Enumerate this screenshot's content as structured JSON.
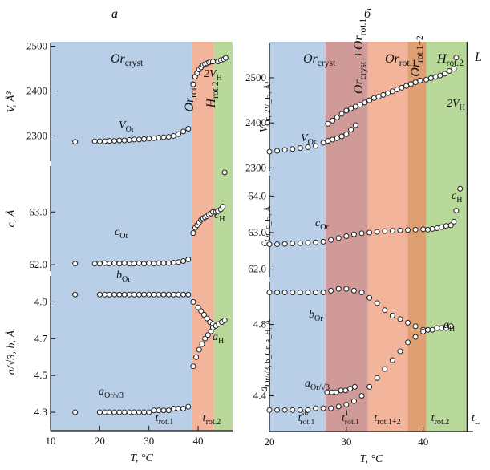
{
  "chart_data": [
    {
      "panel": "a",
      "panel_label": "а",
      "type": "scatter",
      "xlabel": "T, °C",
      "xlim": [
        10,
        47
      ],
      "x_ticks": [
        "10",
        "20",
        "30",
        "40"
      ],
      "phase_regions": [
        {
          "label": "Or_cryst",
          "from": 10,
          "to": 38.8,
          "color": "#b9cfe8"
        },
        {
          "label": "Or_rot.1",
          "from": 38.8,
          "to": 43.2,
          "color": "#f2b49a"
        },
        {
          "label": "H_rot.2",
          "from": 43.2,
          "to": 47,
          "color": "#b9d99a"
        }
      ],
      "transitions": [
        {
          "label": "t_rot.1",
          "x": 38.8
        },
        {
          "label": "t_rot.2",
          "x": 43.2
        }
      ],
      "subplots": [
        {
          "ylabel": "V, Å³",
          "ylim": [
            2240,
            2510
          ],
          "y_ticks": [
            "2300",
            "2400",
            "2500"
          ],
          "series": [
            {
              "name": "V_Or",
              "x": [
                15,
                19,
                20,
                21,
                22,
                23,
                24,
                25,
                26,
                27,
                28,
                29,
                30,
                31,
                32,
                33,
                34,
                35,
                36,
                37,
                38,
                39,
                39.4,
                39.8,
                40.2,
                40.6,
                41,
                41.4,
                41.8,
                42.2,
                42.6,
                43
              ],
              "y": [
                2287,
                2288,
                2288,
                2288,
                2289,
                2289,
                2290,
                2290,
                2291,
                2292,
                2292,
                2293,
                2294,
                2295,
                2296,
                2297,
                2298,
                2300,
                2304,
                2310,
                2316,
                2415,
                2432,
                2440,
                2448,
                2453,
                2458,
                2460,
                2462,
                2464,
                2466,
                2466
              ]
            },
            {
              "name": "2V_H",
              "x": [
                44,
                44.6,
                45.2,
                45.6
              ],
              "y": [
                2466,
                2469,
                2471,
                2474
              ]
            }
          ],
          "annotations": [
            {
              "text": "V_Or"
            },
            {
              "text": "2V_H"
            },
            {
              "text": "Or_cryst"
            },
            {
              "text": "Or_rot.1"
            },
            {
              "text": "H_rot.2"
            }
          ]
        },
        {
          "ylabel": "c, Å",
          "ylim": [
            61.85,
            63.9
          ],
          "y_ticks": [
            "62.0",
            "63.0"
          ],
          "series": [
            {
              "name": "c_Or",
              "x": [
                15,
                19,
                20,
                21,
                22,
                23,
                24,
                25,
                26,
                27,
                28,
                29,
                30,
                31,
                32,
                33,
                34,
                35,
                36,
                37,
                38,
                39,
                39.4,
                39.8,
                40.2,
                40.6,
                41,
                41.4,
                41.8,
                42.2,
                42.6,
                43
              ],
              "y": [
                62.02,
                62.02,
                62.02,
                62.03,
                62.02,
                62.03,
                62.02,
                62.03,
                62.02,
                62.02,
                62.03,
                62.02,
                62.03,
                62.02,
                62.03,
                62.03,
                62.03,
                62.04,
                62.05,
                62.07,
                62.1,
                62.6,
                62.7,
                62.75,
                62.8,
                62.85,
                62.88,
                62.9,
                62.92,
                62.95,
                62.97,
                63.0
              ]
            },
            {
              "name": "c_H",
              "x": [
                43.6,
                44,
                44.6,
                45,
                45.4
              ],
              "y": [
                63.0,
                63.02,
                63.05,
                63.1,
                63.75
              ]
            }
          ],
          "annotations": [
            {
              "text": "c_Or"
            },
            {
              "text": "c_H"
            }
          ]
        },
        {
          "ylabel": "a/√3, b, Å",
          "ylim": [
            4.2,
            5.05
          ],
          "y_ticks": [
            "4.3",
            "4.5",
            "4.7",
            "4.9"
          ],
          "series": [
            {
              "name": "b_Or",
              "x": [
                15,
                20,
                21,
                22,
                23,
                24,
                25,
                26,
                27,
                28,
                29,
                30,
                31,
                32,
                33,
                34,
                35,
                36,
                37,
                38,
                39,
                40,
                40.6,
                41.2,
                41.8,
                42.4,
                43
              ],
              "y": [
                4.94,
                4.94,
                4.94,
                4.94,
                4.94,
                4.94,
                4.94,
                4.94,
                4.94,
                4.94,
                4.94,
                4.94,
                4.94,
                4.94,
                4.94,
                4.94,
                4.94,
                4.94,
                4.94,
                4.94,
                4.9,
                4.87,
                4.85,
                4.83,
                4.81,
                4.79,
                4.78
              ]
            },
            {
              "name": "a_Or/√3",
              "x": [
                15,
                20,
                21,
                22,
                23,
                24,
                25,
                26,
                27,
                28,
                29,
                30,
                31,
                32,
                33,
                34,
                35,
                36,
                37,
                38,
                39,
                39.6,
                40.2,
                40.8,
                41.4,
                42,
                42.6,
                43
              ],
              "y": [
                4.3,
                4.3,
                4.3,
                4.3,
                4.3,
                4.3,
                4.3,
                4.3,
                4.3,
                4.3,
                4.3,
                4.3,
                4.31,
                4.31,
                4.31,
                4.31,
                4.32,
                4.32,
                4.32,
                4.33,
                4.55,
                4.6,
                4.64,
                4.67,
                4.7,
                4.72,
                4.74,
                4.76
              ]
            },
            {
              "name": "a_H",
              "x": [
                43.6,
                44.2,
                44.8,
                45.4
              ],
              "y": [
                4.77,
                4.78,
                4.79,
                4.8
              ]
            }
          ],
          "annotations": [
            {
              "text": "b_Or"
            },
            {
              "text": "a_Or/√3"
            },
            {
              "text": "a_H"
            }
          ]
        }
      ]
    },
    {
      "panel": "b",
      "panel_label": "б",
      "type": "scatter",
      "xlabel": "T, °C",
      "xlim": [
        20,
        46.5
      ],
      "x_ticks": [
        "20",
        "30",
        "40"
      ],
      "phase_regions": [
        {
          "label": "Or_cryst",
          "from": 20,
          "to": 27.3,
          "color": "#b9cfe8"
        },
        {
          "label": "Or_cryst + Or_rot.1",
          "from": 27.3,
          "to": 32.8,
          "color": "#cf9a98"
        },
        {
          "label": "Or_rot.1",
          "from": 32.8,
          "to": 38,
          "color": "#f2b49a"
        },
        {
          "label": "Or_rot.1+2",
          "from": 38,
          "to": 40.4,
          "color": "#dea072"
        },
        {
          "label": "H_rot.2",
          "from": 40.4,
          "to": 45.7,
          "color": "#b9d99a"
        },
        {
          "label": "L",
          "from": 45.7,
          "to": 46.5,
          "color": "#ffffff"
        }
      ],
      "transitions": [
        {
          "label": "t_rot.1^sh",
          "x": 26.1
        },
        {
          "label": "t_rot.1^1",
          "x": 30.4
        },
        {
          "label": "t_rot.1+2",
          "x": 35.2
        },
        {
          "label": "t_rot.2",
          "x": 41.3
        },
        {
          "label": "t_L",
          "x": 45.7
        }
      ],
      "subplots": [
        {
          "ylabel": "V_Or, 2V_H, Å³",
          "ylim": [
            2290,
            2580
          ],
          "y_ticks": [
            "2300",
            "2400",
            "2500"
          ],
          "series": [
            {
              "name": "V_Or",
              "x": [
                20,
                21,
                22,
                23,
                24,
                25,
                26,
                27,
                27.6,
                28.2,
                28.8,
                29.4,
                30,
                30.6,
                31.2
              ],
              "y": [
                2336,
                2338,
                2340,
                2342,
                2344,
                2346,
                2349,
                2356,
                2360,
                2363,
                2366,
                2370,
                2375,
                2385,
                2395
              ]
            },
            {
              "name": "V_Or (rot.1)",
              "x": [
                27.6,
                28.2,
                28.8,
                29.4,
                30,
                30.6,
                31.2,
                31.8,
                32.4,
                33,
                33.6,
                34.2,
                34.8,
                35.4,
                36,
                36.6,
                37.2,
                37.8,
                38.4,
                39,
                39.6
              ],
              "y": [
                2398,
                2405,
                2412,
                2420,
                2427,
                2432,
                2436,
                2440,
                2445,
                2450,
                2455,
                2458,
                2462,
                2466,
                2470,
                2474,
                2478,
                2482,
                2486,
                2490,
                2494
              ]
            },
            {
              "name": "2V_H",
              "x": [
                40.4,
                41,
                41.6,
                42.2,
                42.8,
                43.4,
                44,
                44.3
              ],
              "y": [
                2496,
                2499,
                2502,
                2505,
                2509,
                2515,
                2520,
                2545
              ]
            }
          ],
          "annotations": [
            {
              "text": "V_Or"
            },
            {
              "text": "2V_H"
            },
            {
              "text": "Or_cryst"
            },
            {
              "text": "Or_cryst + Or_rot.1"
            },
            {
              "text": "Or_rot.1"
            },
            {
              "text": "Or_rot.1+2"
            },
            {
              "text": "H_rot.2"
            },
            {
              "text": "L"
            }
          ]
        },
        {
          "ylabel": "c_Or, c_H, Å",
          "ylim": [
            61.75,
            64.6
          ],
          "y_ticks": [
            "62.0",
            "63.0",
            "64.0"
          ],
          "series": [
            {
              "name": "c_Or",
              "x": [
                20,
                21,
                22,
                23,
                24,
                25,
                26,
                27,
                28,
                29,
                30,
                31,
                32,
                33,
                34,
                35,
                36,
                37,
                38,
                39,
                40
              ],
              "y": [
                62.68,
                62.68,
                62.69,
                62.7,
                62.71,
                62.72,
                62.73,
                62.75,
                62.8,
                62.85,
                62.9,
                62.95,
                62.98,
                63.0,
                63.02,
                63.04,
                63.05,
                63.06,
                63.07,
                63.08,
                63.09
              ]
            },
            {
              "name": "c_H",
              "x": [
                40.6,
                41.2,
                41.8,
                42.4,
                43,
                43.6,
                44,
                44.3,
                44.8
              ],
              "y": [
                63.08,
                63.1,
                63.12,
                63.15,
                63.18,
                63.2,
                63.3,
                63.6,
                64.2
              ]
            }
          ],
          "annotations": [
            {
              "text": "c_Or"
            },
            {
              "text": "c_H"
            }
          ]
        },
        {
          "ylabel": "a_Or/√3, b_Or, a_H, Å",
          "ylim": [
            4.2,
            5.05
          ],
          "y_ticks": [
            "4.4",
            "4.8"
          ],
          "series": [
            {
              "name": "b_Or",
              "x": [
                20,
                21,
                22,
                23,
                24,
                25,
                26,
                27,
                28,
                29,
                30,
                31,
                32,
                33,
                34,
                35,
                36,
                37,
                38,
                39,
                40
              ],
              "y": [
                4.98,
                4.98,
                4.98,
                4.98,
                4.98,
                4.98,
                4.98,
                4.98,
                4.99,
                5.0,
                5.0,
                4.99,
                4.98,
                4.95,
                4.92,
                4.88,
                4.85,
                4.83,
                4.81,
                4.79,
                4.77
              ]
            },
            {
              "name": "a_Or/√3",
              "x": [
                20,
                21,
                22,
                23,
                24,
                25,
                26,
                27,
                28,
                29,
                30,
                31,
                32,
                33,
                34,
                35,
                36,
                37,
                38,
                39,
                40
              ],
              "y": [
                4.32,
                4.32,
                4.32,
                4.32,
                4.32,
                4.32,
                4.33,
                4.33,
                4.33,
                4.34,
                4.35,
                4.37,
                4.4,
                4.45,
                4.5,
                4.55,
                4.6,
                4.65,
                4.7,
                4.73,
                4.76
              ]
            },
            {
              "name": "a_Or/√3 (cryst)",
              "x": [
                27.5,
                28.1,
                28.7,
                29.3,
                29.9,
                30.5,
                31.1
              ],
              "y": [
                4.42,
                4.42,
                4.42,
                4.43,
                4.43,
                4.44,
                4.45
              ]
            },
            {
              "name": "a_H",
              "x": [
                40.6,
                41.2,
                41.8,
                42.4,
                43,
                43.6
              ],
              "y": [
                4.77,
                4.77,
                4.78,
                4.78,
                4.78,
                4.79
              ]
            }
          ],
          "annotations": [
            {
              "text": "b_Or"
            },
            {
              "text": "a_Or/√3"
            },
            {
              "text": "a_H"
            }
          ]
        }
      ]
    }
  ]
}
